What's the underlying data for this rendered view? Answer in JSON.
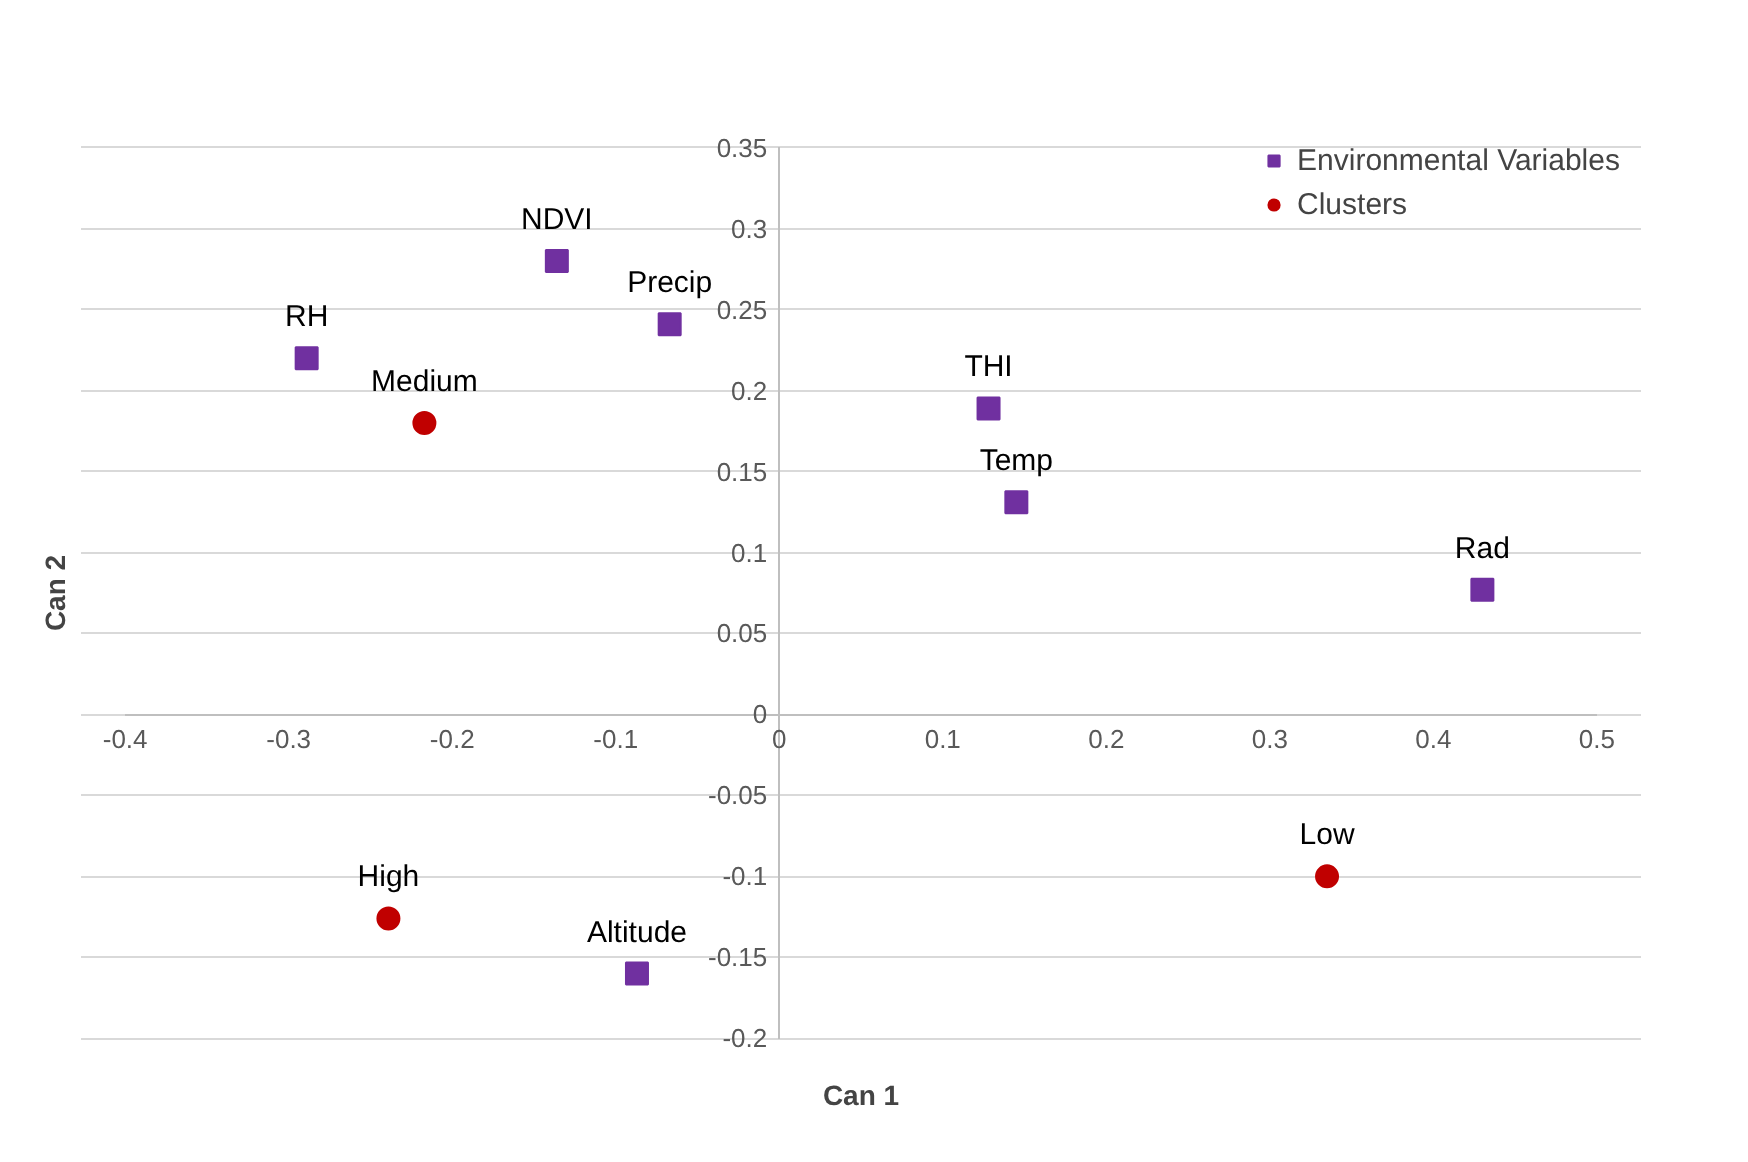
{
  "chart_data": {
    "type": "scatter",
    "xlabel": "Can 1",
    "ylabel": "Can 2",
    "xlim": [
      -0.4,
      0.5
    ],
    "xticks": [
      -0.4,
      -0.3,
      -0.2,
      -0.1,
      0,
      0.1,
      0.2,
      0.3,
      0.4,
      0.5
    ],
    "ylim": [
      -0.2,
      0.35
    ],
    "yticks": [
      -0.2,
      -0.15,
      -0.1,
      -0.05,
      0,
      0.05,
      0.1,
      0.15,
      0.2,
      0.25,
      0.3,
      0.35
    ],
    "grid": "y",
    "legend": "top right",
    "series": [
      {
        "name": "Environmental Variables",
        "color": "#7030a0",
        "marker": "square",
        "x": [
          -0.136,
          -0.067,
          -0.289,
          0.128,
          0.145,
          0.43,
          -0.087
        ],
        "values": [
          0.28,
          0.241,
          0.22,
          0.189,
          0.131,
          0.077,
          -0.16
        ]
      },
      {
        "name": "Clusters",
        "color": "#c00000",
        "marker": "circle",
        "x": [
          -0.217,
          0.335,
          -0.239
        ],
        "values": [
          0.18,
          -0.1,
          -0.126
        ]
      }
    ],
    "annotations": [
      {
        "text": "NDVI",
        "x": -0.136,
        "y": 0.28
      },
      {
        "text": "Precip",
        "x": -0.067,
        "y": 0.241
      },
      {
        "text": "RH",
        "x": -0.289,
        "y": 0.22
      },
      {
        "text": "THI",
        "x": 0.128,
        "y": 0.189
      },
      {
        "text": "Temp",
        "x": 0.145,
        "y": 0.131
      },
      {
        "text": "Rad",
        "x": 0.43,
        "y": 0.077
      },
      {
        "text": "Altitude",
        "x": -0.087,
        "y": -0.16
      },
      {
        "text": "Medium",
        "x": -0.217,
        "y": 0.18
      },
      {
        "text": "Low",
        "x": 0.335,
        "y": -0.1
      },
      {
        "text": "High",
        "x": -0.239,
        "y": -0.126
      }
    ]
  }
}
